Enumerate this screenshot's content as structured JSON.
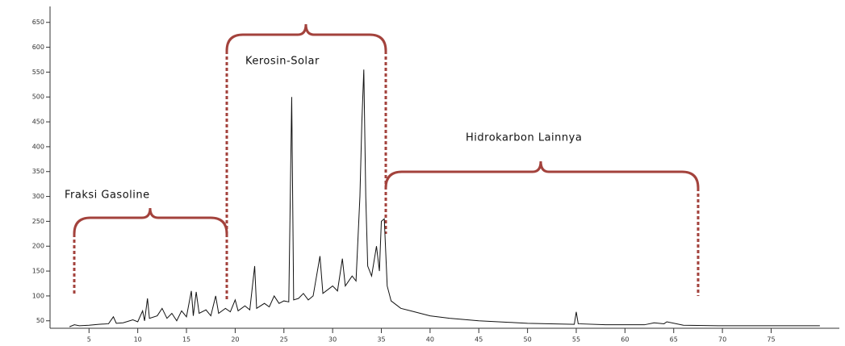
{
  "chart_data": {
    "type": "line",
    "x": [
      3,
      3.5,
      4,
      5,
      6,
      7,
      7.5,
      7.8,
      8.5,
      9.5,
      10,
      10.5,
      10.7,
      11,
      11.2,
      12,
      12.5,
      13,
      13.5,
      14,
      14.5,
      15,
      15.5,
      15.7,
      16,
      16.3,
      17,
      17.5,
      18,
      18.3,
      19,
      19.5,
      20,
      20.3,
      21,
      21.5,
      22,
      22.2,
      23,
      23.5,
      24,
      24.5,
      25,
      25.5,
      25.8,
      26,
      26.5,
      27,
      27.5,
      28,
      28.7,
      29,
      30,
      30.5,
      31,
      31.3,
      32,
      32.4,
      32.8,
      33,
      33.2,
      33.4,
      33.6,
      34,
      34.5,
      34.8,
      35,
      35.3,
      35.6,
      36,
      37,
      38,
      40,
      42,
      45,
      48,
      50,
      54.8,
      55,
      55.2,
      58,
      62,
      63,
      64,
      64.3,
      66,
      70,
      75,
      80
    ],
    "series": [
      {
        "color": "#111111",
        "values": [
          38,
          42,
          40,
          41,
          43,
          44,
          58,
          45,
          46,
          52,
          48,
          70,
          50,
          95,
          55,
          60,
          75,
          55,
          65,
          50,
          70,
          58,
          110,
          60,
          108,
          65,
          72,
          60,
          100,
          65,
          75,
          68,
          92,
          70,
          80,
          72,
          160,
          75,
          85,
          78,
          100,
          85,
          90,
          88,
          500,
          92,
          95,
          105,
          92,
          100,
          180,
          105,
          120,
          110,
          175,
          120,
          140,
          130,
          300,
          450,
          555,
          300,
          160,
          140,
          200,
          150,
          250,
          255,
          120,
          90,
          75,
          70,
          60,
          55,
          50,
          47,
          45,
          43,
          68,
          44,
          42,
          42,
          46,
          44,
          48,
          41,
          40,
          40,
          40
        ]
      }
    ],
    "xlim": [
      1,
      82
    ],
    "ylim": [
      35,
      682
    ],
    "xticks": [
      5,
      10,
      15,
      20,
      25,
      30,
      35,
      40,
      45,
      50,
      55,
      60,
      65,
      70,
      75
    ],
    "yticks": [
      50,
      100,
      150,
      200,
      250,
      300,
      350,
      400,
      450,
      500,
      550,
      600,
      650
    ],
    "annotations": [
      "Fraksi Gasoline",
      "Kerosin-Solar",
      "Hidrokarbon Lainnya"
    ]
  }
}
